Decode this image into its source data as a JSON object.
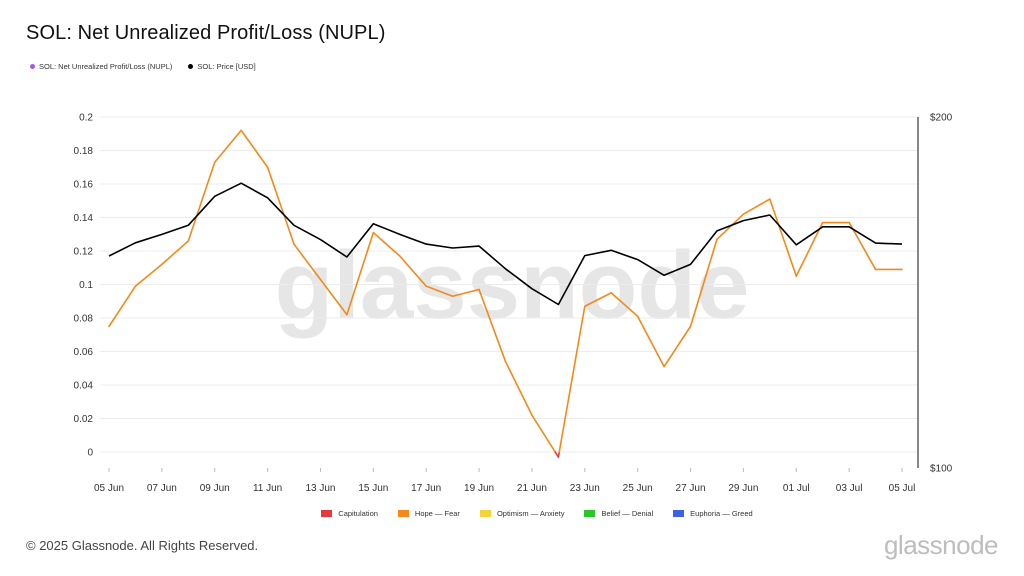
{
  "header": {
    "title": "SOL: Net Unrealized Profit/Loss (NUPL)"
  },
  "top_legend": [
    {
      "label": "SOL: Net Unrealized Profit/Loss (NUPL)",
      "color": "#a855f7"
    },
    {
      "label": "SOL: Price [USD]",
      "color": "#000000"
    }
  ],
  "bottom_legend": [
    {
      "label": "Capitulation",
      "color": "#e33b3b"
    },
    {
      "label": "Hope — Fear",
      "color": "#f28a1b"
    },
    {
      "label": "Optimism — Anxiety",
      "color": "#f5d33a"
    },
    {
      "label": "Belief — Denial",
      "color": "#2cc52c"
    },
    {
      "label": "Euphoria — Greed",
      "color": "#3b63e3"
    }
  ],
  "footer": {
    "copyright": "© 2025 Glassnode. All Rights Reserved.",
    "brand": "glassnode"
  },
  "watermark": "glassnode",
  "chart_data": {
    "type": "line",
    "title": "SOL: Net Unrealized Profit/Loss (NUPL)",
    "x_labels": [
      "05 Jun",
      "07 Jun",
      "09 Jun",
      "11 Jun",
      "13 Jun",
      "15 Jun",
      "17 Jun",
      "19 Jun",
      "21 Jun",
      "23 Jun",
      "25 Jun",
      "27 Jun",
      "29 Jun",
      "01 Jul",
      "03 Jul",
      "05 Jul"
    ],
    "dates": [
      "05 Jun",
      "06 Jun",
      "07 Jun",
      "08 Jun",
      "09 Jun",
      "10 Jun",
      "11 Jun",
      "12 Jun",
      "13 Jun",
      "14 Jun",
      "15 Jun",
      "16 Jun",
      "17 Jun",
      "18 Jun",
      "19 Jun",
      "20 Jun",
      "21 Jun",
      "22 Jun",
      "23 Jun",
      "24 Jun",
      "25 Jun",
      "26 Jun",
      "27 Jun",
      "28 Jun",
      "29 Jun",
      "30 Jun",
      "01 Jul",
      "02 Jul",
      "03 Jul",
      "04 Jul",
      "05 Jul"
    ],
    "left_axis": {
      "ylim": [
        -0.01,
        0.2
      ],
      "ticks": [
        "0.2",
        "0.18",
        "0.16",
        "0.14",
        "0.12",
        "0.1",
        "0.08",
        "0.06",
        "0.04",
        "0.02",
        "0"
      ]
    },
    "right_axis": {
      "ylim": [
        100,
        200
      ],
      "ticks": [
        "$200",
        "$100"
      ],
      "scale": "log"
    },
    "series": [
      {
        "name": "SOL: Net Unrealized Profit/Loss (NUPL)",
        "axis": "left",
        "values": [
          0.075,
          0.099,
          0.112,
          0.126,
          0.173,
          0.192,
          0.17,
          0.124,
          0.103,
          0.082,
          0.131,
          0.117,
          0.099,
          0.093,
          0.097,
          0.054,
          0.022,
          -0.003,
          0.087,
          0.095,
          0.081,
          0.051,
          0.075,
          0.127,
          0.142,
          0.151,
          0.105,
          0.137,
          0.137,
          0.109,
          0.109
        ],
        "zone_colors": {
          "capitulation": "#e33b3b",
          "hope_fear": "#f28a1b"
        }
      },
      {
        "name": "SOL: Price [USD]",
        "axis": "right",
        "color": "#000000",
        "values": [
          152,
          156,
          158.6,
          161.5,
          171,
          175.5,
          170.5,
          161.5,
          157,
          151.7,
          162,
          158.6,
          155.6,
          154.4,
          155,
          148.2,
          142.5,
          138.1,
          152.1,
          153.7,
          150.9,
          146.3,
          149.5,
          159.7,
          163,
          164.8,
          155.4,
          161,
          161,
          155.9,
          155.6
        ]
      }
    ],
    "grid": "horizontal"
  }
}
